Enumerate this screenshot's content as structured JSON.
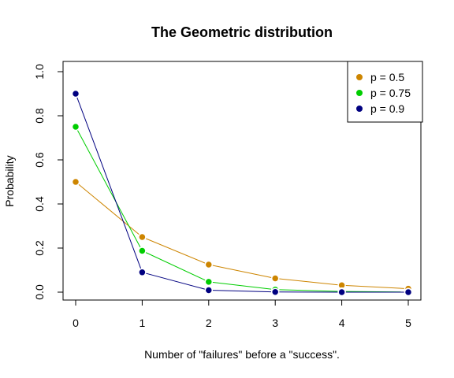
{
  "chart_data": {
    "type": "line",
    "title": "The Geometric distribution",
    "xlabel": "Number of \"failures\" before a \"success\".",
    "ylabel": "Probability",
    "x": [
      0,
      1,
      2,
      3,
      4,
      5
    ],
    "xlim": [
      0,
      5
    ],
    "ylim": [
      0,
      1
    ],
    "x_ticks": [
      "0",
      "1",
      "2",
      "3",
      "4",
      "5"
    ],
    "y_ticks": [
      "0.0",
      "0.2",
      "0.4",
      "0.6",
      "0.8",
      "1.0"
    ],
    "grid": false,
    "legend_position": "top-right",
    "series": [
      {
        "name": "p = 0.5",
        "color": "#cd8500",
        "values": [
          0.5,
          0.25,
          0.125,
          0.0625,
          0.03125,
          0.015625
        ]
      },
      {
        "name": "p = 0.75",
        "color": "#00cd00",
        "values": [
          0.75,
          0.1875,
          0.046875,
          0.01171875,
          0.0029296875,
          0.000732421875
        ]
      },
      {
        "name": "p = 0.9",
        "color": "#000080",
        "values": [
          0.9,
          0.09,
          0.009,
          0.0009,
          9e-05,
          9e-06
        ]
      }
    ]
  }
}
